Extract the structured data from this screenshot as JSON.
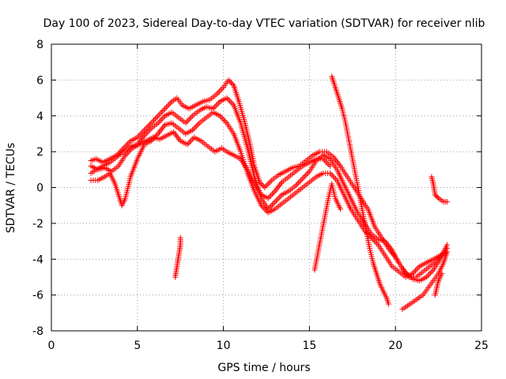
{
  "chart_data": {
    "type": "scatter",
    "title": "Day 100 of 2023, Sidereal Day-to-day VTEC variation (SDTVAR) for receiver nlib",
    "xlabel": "GPS time / hours",
    "ylabel": "SDTVAR / TECUs",
    "xlim": [
      0,
      25
    ],
    "ylim": [
      -8,
      8
    ],
    "xticks": [
      0,
      5,
      10,
      15,
      20,
      25
    ],
    "yticks": [
      -8,
      -6,
      -4,
      -2,
      0,
      2,
      4,
      6,
      8
    ],
    "grid": true,
    "marker": "+",
    "color": "#ff0000",
    "series": [
      {
        "values": [
          [
            2.3,
            1.5
          ],
          [
            2.6,
            1.6
          ],
          [
            3.0,
            1.4
          ],
          [
            3.4,
            1.6
          ],
          [
            3.8,
            1.8
          ],
          [
            4.2,
            2.2
          ],
          [
            4.6,
            2.6
          ],
          [
            5.0,
            2.8
          ],
          [
            5.4,
            3.2
          ],
          [
            5.8,
            3.6
          ],
          [
            6.2,
            4.0
          ],
          [
            6.6,
            4.4
          ],
          [
            7.0,
            4.8
          ],
          [
            7.3,
            5.0
          ],
          [
            7.6,
            4.6
          ],
          [
            8.0,
            4.4
          ],
          [
            8.4,
            4.6
          ],
          [
            8.8,
            4.8
          ],
          [
            9.2,
            4.9
          ],
          [
            9.6,
            5.2
          ],
          [
            10.0,
            5.6
          ],
          [
            10.3,
            6.0
          ],
          [
            10.6,
            5.7
          ],
          [
            10.9,
            4.8
          ],
          [
            11.2,
            3.8
          ],
          [
            11.5,
            2.6
          ],
          [
            11.8,
            1.2
          ],
          [
            12.1,
            0.3
          ],
          [
            12.4,
            0.0
          ],
          [
            12.8,
            0.4
          ],
          [
            13.2,
            0.7
          ],
          [
            13.6,
            0.9
          ],
          [
            14.0,
            1.1
          ],
          [
            14.4,
            1.2
          ],
          [
            14.8,
            1.5
          ],
          [
            15.2,
            1.8
          ],
          [
            15.6,
            2.0
          ],
          [
            16.0,
            2.0
          ],
          [
            16.4,
            1.7
          ],
          [
            16.8,
            1.2
          ],
          [
            17.2,
            0.6
          ],
          [
            17.6,
            0.0
          ],
          [
            18.0,
            -0.6
          ],
          [
            18.4,
            -1.2
          ],
          [
            18.8,
            -2.2
          ],
          [
            19.2,
            -2.8
          ],
          [
            19.6,
            -3.4
          ],
          [
            20.0,
            -3.9
          ],
          [
            20.4,
            -4.5
          ],
          [
            20.8,
            -5.0
          ],
          [
            21.2,
            -5.0
          ],
          [
            21.6,
            -4.7
          ],
          [
            22.0,
            -4.4
          ],
          [
            22.4,
            -4.1
          ],
          [
            22.8,
            -3.6
          ],
          [
            23.0,
            -3.2
          ]
        ]
      },
      {
        "values": [
          [
            2.3,
            0.8
          ],
          [
            2.6,
            1.0
          ],
          [
            3.0,
            1.2
          ],
          [
            3.4,
            1.4
          ],
          [
            3.8,
            1.7
          ],
          [
            4.2,
            2.0
          ],
          [
            4.6,
            2.3
          ],
          [
            5.0,
            2.4
          ],
          [
            5.4,
            2.9
          ],
          [
            5.8,
            3.3
          ],
          [
            6.2,
            3.6
          ],
          [
            6.6,
            4.0
          ],
          [
            7.0,
            4.2
          ],
          [
            7.4,
            3.9
          ],
          [
            7.8,
            3.6
          ],
          [
            8.2,
            4.0
          ],
          [
            8.6,
            4.3
          ],
          [
            9.0,
            4.5
          ],
          [
            9.4,
            4.4
          ],
          [
            9.8,
            4.8
          ],
          [
            10.2,
            5.0
          ],
          [
            10.6,
            4.6
          ],
          [
            11.0,
            3.6
          ],
          [
            11.4,
            2.2
          ],
          [
            11.8,
            0.6
          ],
          [
            12.2,
            -0.6
          ],
          [
            12.6,
            -1.2
          ],
          [
            13.0,
            -0.8
          ],
          [
            13.4,
            -0.4
          ],
          [
            13.8,
            -0.2
          ],
          [
            14.2,
            0.1
          ],
          [
            14.6,
            0.5
          ],
          [
            15.0,
            0.9
          ],
          [
            15.4,
            1.5
          ],
          [
            15.8,
            1.8
          ],
          [
            16.2,
            1.6
          ],
          [
            16.6,
            1.0
          ],
          [
            17.0,
            0.2
          ],
          [
            17.4,
            -0.6
          ],
          [
            17.8,
            -1.4
          ],
          [
            18.2,
            -2.0
          ],
          [
            18.6,
            -2.6
          ],
          [
            19.0,
            -2.9
          ],
          [
            19.4,
            -3.0
          ],
          [
            19.8,
            -3.5
          ],
          [
            20.2,
            -4.2
          ],
          [
            20.6,
            -4.8
          ],
          [
            21.0,
            -5.1
          ],
          [
            21.4,
            -5.2
          ],
          [
            21.8,
            -5.0
          ],
          [
            22.2,
            -4.6
          ],
          [
            22.6,
            -4.0
          ],
          [
            23.0,
            -3.4
          ]
        ]
      },
      {
        "values": [
          [
            2.3,
            0.4
          ],
          [
            2.7,
            0.4
          ],
          [
            3.1,
            0.6
          ],
          [
            3.4,
            0.8
          ],
          [
            3.7,
            0.2
          ],
          [
            3.9,
            -0.4
          ],
          [
            4.1,
            -1.0
          ],
          [
            4.3,
            -0.6
          ],
          [
            4.6,
            0.6
          ],
          [
            5.0,
            1.6
          ],
          [
            5.4,
            2.4
          ],
          [
            5.8,
            2.6
          ],
          [
            6.2,
            3.0
          ],
          [
            6.6,
            3.5
          ],
          [
            7.0,
            3.6
          ],
          [
            7.4,
            3.3
          ],
          [
            7.8,
            3.0
          ],
          [
            8.2,
            3.2
          ],
          [
            8.6,
            3.6
          ],
          [
            9.0,
            3.9
          ],
          [
            9.4,
            4.2
          ],
          [
            9.8,
            4.0
          ],
          [
            10.2,
            3.6
          ],
          [
            10.6,
            3.0
          ],
          [
            11.0,
            2.0
          ],
          [
            11.4,
            0.8
          ],
          [
            11.8,
            -0.2
          ],
          [
            12.2,
            -1.0
          ],
          [
            12.6,
            -1.4
          ],
          [
            13.0,
            -1.2
          ],
          [
            13.4,
            -0.9
          ],
          [
            13.8,
            -0.6
          ],
          [
            14.2,
            -0.3
          ],
          [
            14.6,
            0.0
          ],
          [
            15.0,
            0.3
          ],
          [
            15.4,
            0.6
          ],
          [
            15.8,
            0.8
          ],
          [
            16.2,
            0.8
          ],
          [
            16.6,
            0.4
          ],
          [
            17.0,
            -0.4
          ],
          [
            17.4,
            -1.2
          ],
          [
            17.8,
            -1.8
          ],
          [
            18.2,
            -2.4
          ],
          [
            18.6,
            -2.8
          ],
          [
            19.0,
            -3.2
          ],
          [
            19.4,
            -3.8
          ],
          [
            19.8,
            -4.4
          ],
          [
            20.2,
            -4.7
          ],
          [
            20.6,
            -5.0
          ],
          [
            21.0,
            -4.8
          ],
          [
            21.4,
            -4.4
          ],
          [
            21.8,
            -4.2
          ],
          [
            22.2,
            -4.0
          ],
          [
            22.6,
            -3.8
          ],
          [
            23.0,
            -3.6
          ]
        ]
      },
      {
        "values": [
          [
            2.3,
            1.2
          ],
          [
            2.7,
            1.0
          ],
          [
            3.1,
            1.1
          ],
          [
            3.5,
            0.9
          ],
          [
            3.9,
            1.2
          ],
          [
            4.3,
            1.8
          ],
          [
            4.7,
            2.2
          ],
          [
            5.1,
            2.4
          ],
          [
            5.5,
            2.6
          ],
          [
            5.9,
            2.8
          ],
          [
            6.3,
            2.7
          ],
          [
            6.7,
            2.9
          ],
          [
            7.1,
            3.1
          ],
          [
            7.5,
            2.6
          ],
          [
            7.9,
            2.4
          ],
          [
            8.3,
            2.8
          ],
          [
            8.7,
            2.6
          ],
          [
            9.1,
            2.3
          ],
          [
            9.5,
            2.0
          ],
          [
            9.9,
            2.2
          ],
          [
            10.2,
            2.0
          ],
          [
            10.6,
            1.8
          ],
          [
            11.0,
            1.6
          ],
          [
            11.4,
            1.0
          ],
          [
            11.8,
            0.2
          ],
          [
            12.2,
            -0.4
          ],
          [
            12.6,
            -0.6
          ],
          [
            13.0,
            -0.2
          ],
          [
            13.4,
            0.3
          ],
          [
            13.8,
            0.6
          ],
          [
            14.2,
            0.9
          ],
          [
            14.6,
            1.2
          ],
          [
            15.0,
            1.4
          ],
          [
            15.4,
            1.6
          ],
          [
            15.8,
            1.6
          ],
          [
            16.2,
            1.2
          ]
        ]
      },
      {
        "values": [
          [
            7.2,
            -5.0
          ],
          [
            7.3,
            -4.4
          ],
          [
            7.4,
            -3.8
          ],
          [
            7.5,
            -3.2
          ],
          [
            7.5,
            -2.8
          ]
        ]
      },
      {
        "values": [
          [
            15.3,
            -4.6
          ],
          [
            15.5,
            -3.6
          ],
          [
            15.7,
            -2.6
          ],
          [
            15.9,
            -1.6
          ],
          [
            16.1,
            -0.6
          ],
          [
            16.3,
            0.2
          ],
          [
            16.5,
            -0.6
          ],
          [
            16.8,
            -1.2
          ]
        ]
      },
      {
        "values": [
          [
            16.3,
            6.2
          ],
          [
            16.5,
            5.6
          ],
          [
            16.7,
            5.0
          ],
          [
            16.9,
            4.4
          ],
          [
            17.1,
            3.6
          ],
          [
            17.3,
            2.6
          ],
          [
            17.5,
            1.6
          ],
          [
            17.7,
            0.6
          ],
          [
            17.9,
            -0.4
          ],
          [
            18.1,
            -1.4
          ],
          [
            18.3,
            -2.4
          ],
          [
            18.5,
            -3.4
          ],
          [
            18.7,
            -4.2
          ],
          [
            18.9,
            -4.8
          ],
          [
            19.1,
            -5.4
          ],
          [
            19.3,
            -5.8
          ],
          [
            19.5,
            -6.2
          ],
          [
            19.6,
            -6.5
          ]
        ]
      },
      {
        "values": [
          [
            20.4,
            -6.8
          ],
          [
            20.7,
            -6.6
          ],
          [
            21.0,
            -6.4
          ],
          [
            21.3,
            -6.2
          ],
          [
            21.6,
            -6.0
          ],
          [
            21.9,
            -5.6
          ],
          [
            22.2,
            -5.2
          ],
          [
            22.5,
            -4.8
          ],
          [
            22.8,
            -4.2
          ],
          [
            23.0,
            -3.6
          ]
        ]
      },
      {
        "values": [
          [
            22.1,
            0.6
          ],
          [
            22.2,
            0.2
          ],
          [
            22.3,
            -0.4
          ],
          [
            22.5,
            -0.6
          ],
          [
            22.8,
            -0.8
          ],
          [
            23.0,
            -0.8
          ]
        ]
      },
      {
        "values": [
          [
            22.3,
            -6.0
          ],
          [
            22.4,
            -5.6
          ],
          [
            22.5,
            -5.2
          ],
          [
            22.7,
            -4.8
          ]
        ]
      }
    ]
  }
}
